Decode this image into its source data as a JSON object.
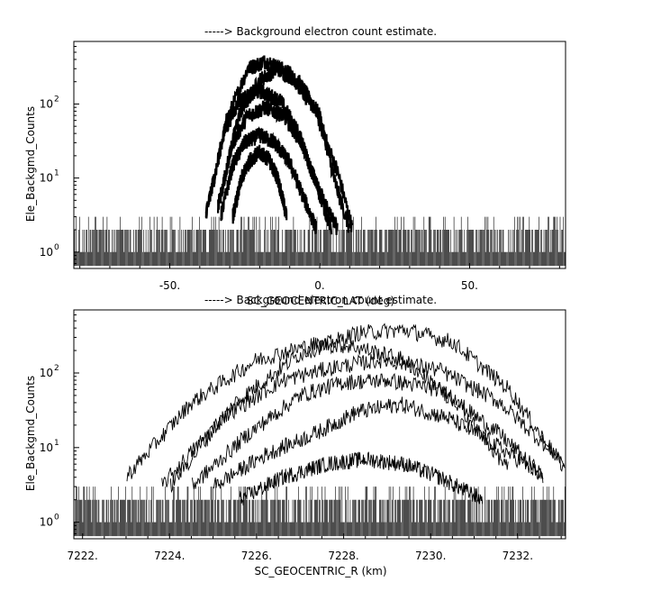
{
  "chart_data": [
    {
      "type": "line",
      "title": "-----> Background electron count estimate.",
      "xlabel": "SC_GEOCENTRIC_LAT (deg)",
      "ylabel": "Ele_Backgmd_Counts",
      "xlim": [
        -82,
        82
      ],
      "ylim": [
        0.6,
        700
      ],
      "yscale": "log",
      "grid": false,
      "x_ticks": [
        -50,
        0,
        50
      ],
      "x_tick_labels": [
        "-50.",
        "0.",
        "50."
      ],
      "y_ticks": [
        1,
        10,
        100
      ],
      "y_tick_labels": [
        "10^0",
        "10^1",
        "10^2"
      ],
      "noise_floor": {
        "x_range": [
          -82,
          82
        ],
        "values": [
          1,
          2,
          3
        ]
      },
      "series": [
        {
          "x": [
            -38,
            -31,
            -24,
            -18,
            -10,
            -2,
            6,
            11
          ],
          "y": [
            3,
            60,
            300,
            380,
            260,
            90,
            12,
            2
          ]
        },
        {
          "x": [
            -34,
            -27,
            -20,
            -14,
            -7,
            0,
            5,
            10
          ],
          "y": [
            4,
            70,
            210,
            300,
            200,
            70,
            9,
            2
          ]
        },
        {
          "x": [
            -38,
            -32,
            -27,
            -20,
            -13,
            -7,
            -1,
            6
          ],
          "y": [
            3,
            40,
            110,
            150,
            110,
            40,
            8,
            2
          ]
        },
        {
          "x": [
            -34,
            -29,
            -24,
            -18,
            -12,
            -6,
            0,
            4
          ],
          "y": [
            4,
            30,
            70,
            90,
            70,
            30,
            6,
            2
          ]
        },
        {
          "x": [
            -33,
            -29,
            -25,
            -20,
            -15,
            -10,
            -5,
            -1
          ],
          "y": [
            3,
            15,
            30,
            38,
            30,
            16,
            5,
            2
          ]
        },
        {
          "x": [
            -29,
            -26,
            -23,
            -20,
            -17,
            -14,
            -11
          ],
          "y": [
            3,
            10,
            18,
            22,
            18,
            10,
            3
          ]
        }
      ]
    },
    {
      "type": "line",
      "title": "-----> Background electron count estimate.",
      "xlabel": "SC_GEOCENTRIC_R (km)",
      "ylabel": "Ele_Backgmd_Counts",
      "xlim": [
        7221.8,
        7233.1
      ],
      "ylim": [
        0.6,
        700
      ],
      "yscale": "log",
      "grid": false,
      "x_ticks": [
        7222,
        7224,
        7226,
        7228,
        7230,
        7232
      ],
      "x_tick_labels": [
        "7222.",
        "7224.",
        "7226.",
        "7228.",
        "7230.",
        "7232."
      ],
      "y_ticks": [
        1,
        10,
        100
      ],
      "y_tick_labels": [
        "10^0",
        "10^1",
        "10^2"
      ],
      "noise_floor": {
        "x_range": [
          7221.8,
          7233.1
        ],
        "values": [
          1,
          2,
          3
        ]
      },
      "series": [
        {
          "x": [
            7224.0,
            7225.5,
            7227.0,
            7228.3,
            7229.4,
            7230.5,
            7231.8,
            7233.1
          ],
          "y": [
            3,
            40,
            180,
            340,
            380,
            260,
            60,
            5
          ]
        },
        {
          "x": [
            7223.0,
            7224.5,
            7226.0,
            7227.3,
            7228.2,
            7229.4,
            7230.6,
            7231.8
          ],
          "y": [
            4,
            40,
            150,
            240,
            230,
            150,
            40,
            5
          ]
        },
        {
          "x": [
            7223.8,
            7225.2,
            7226.6,
            7227.8,
            7228.9,
            7230.2,
            7231.6,
            7233.1
          ],
          "y": [
            3,
            25,
            80,
            120,
            150,
            110,
            40,
            6
          ]
        },
        {
          "x": [
            7224.5,
            7225.8,
            7227.0,
            7228.0,
            7229.0,
            7230.2,
            7231.6,
            7232.6
          ],
          "y": [
            3,
            15,
            50,
            75,
            80,
            60,
            15,
            4
          ]
        },
        {
          "x": [
            7225.0,
            7226.2,
            7227.4,
            7228.3,
            7229.3,
            7230.4,
            7231.6,
            7232.6
          ],
          "y": [
            3,
            8,
            16,
            30,
            38,
            25,
            10,
            4
          ]
        },
        {
          "x": [
            7225.6,
            7226.6,
            7227.6,
            7228.5,
            7229.4,
            7230.2,
            7231.2
          ],
          "y": [
            2,
            4,
            6,
            7,
            6,
            4,
            2
          ]
        }
      ]
    }
  ]
}
